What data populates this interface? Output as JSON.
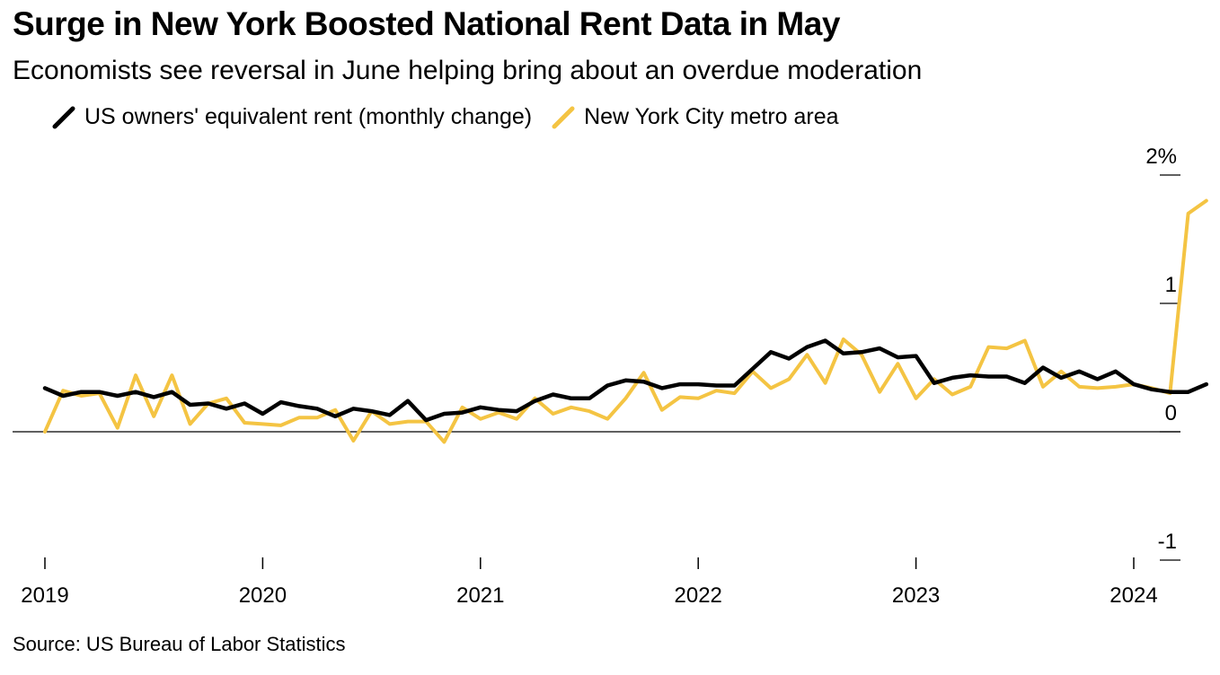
{
  "header": {
    "title": "Surge in New York Boosted National Rent Data in May",
    "subtitle": "Economists see reversal in June helping bring about an overdue moderation"
  },
  "footer": {
    "source": "Source: US Bureau of Labor Statistics"
  },
  "colors": {
    "us_series": "#000000",
    "nyc_series": "#f4c443",
    "axis": "#000000"
  },
  "chart_data": {
    "type": "line",
    "ylim": [
      -1,
      2
    ],
    "yticks": [
      {
        "value": 2,
        "label": "2%"
      },
      {
        "value": 1,
        "label": "1"
      },
      {
        "value": 0,
        "label": "0"
      },
      {
        "value": -1,
        "label": "-1"
      }
    ],
    "xticks": [
      {
        "date": "2019-01",
        "label": "2019"
      },
      {
        "date": "2020-01",
        "label": "2020"
      },
      {
        "date": "2021-01",
        "label": "2021"
      },
      {
        "date": "2022-01",
        "label": "2022"
      },
      {
        "date": "2023-01",
        "label": "2023"
      },
      {
        "date": "2024-01",
        "label": "2024"
      }
    ],
    "x": [
      "2019-01",
      "2019-02",
      "2019-03",
      "2019-04",
      "2019-05",
      "2019-06",
      "2019-07",
      "2019-08",
      "2019-09",
      "2019-10",
      "2019-11",
      "2019-12",
      "2020-01",
      "2020-02",
      "2020-03",
      "2020-04",
      "2020-05",
      "2020-06",
      "2020-07",
      "2020-08",
      "2020-09",
      "2020-10",
      "2020-11",
      "2020-12",
      "2021-01",
      "2021-02",
      "2021-03",
      "2021-04",
      "2021-05",
      "2021-06",
      "2021-07",
      "2021-08",
      "2021-09",
      "2021-10",
      "2021-11",
      "2021-12",
      "2022-01",
      "2022-02",
      "2022-03",
      "2022-04",
      "2022-05",
      "2022-06",
      "2022-07",
      "2022-08",
      "2022-09",
      "2022-10",
      "2022-11",
      "2022-12",
      "2023-01",
      "2023-02",
      "2023-03",
      "2023-04",
      "2023-05",
      "2023-06",
      "2023-07",
      "2023-08",
      "2023-09",
      "2023-10",
      "2023-11",
      "2023-12",
      "2024-01",
      "2024-02",
      "2024-03",
      "2024-04",
      "2024-05"
    ],
    "series": [
      {
        "name": "US owners' equivalent rent (monthly change)",
        "color": "#000000",
        "values": [
          0.34,
          0.28,
          0.31,
          0.31,
          0.28,
          0.31,
          0.27,
          0.31,
          0.21,
          0.22,
          0.18,
          0.22,
          0.14,
          0.23,
          0.2,
          0.18,
          0.12,
          0.18,
          0.16,
          0.13,
          0.24,
          0.09,
          0.14,
          0.15,
          0.19,
          0.17,
          0.16,
          0.24,
          0.29,
          0.26,
          0.26,
          0.36,
          0.4,
          0.39,
          0.34,
          0.37,
          0.37,
          0.36,
          0.36,
          0.49,
          0.62,
          0.57,
          0.66,
          0.71,
          0.61,
          0.62,
          0.65,
          0.58,
          0.59,
          0.38,
          0.42,
          0.44,
          0.43,
          0.43,
          0.38,
          0.5,
          0.42,
          0.47,
          0.41,
          0.47,
          0.37,
          0.33,
          0.31,
          0.31,
          0.37
        ]
      },
      {
        "name": "New York City metro area",
        "color": "#f4c443",
        "values": [
          0.0,
          0.32,
          0.28,
          0.3,
          0.03,
          0.44,
          0.12,
          0.44,
          0.06,
          0.22,
          0.26,
          0.07,
          0.06,
          0.05,
          0.11,
          0.11,
          0.17,
          -0.07,
          0.16,
          0.06,
          0.08,
          0.08,
          -0.08,
          0.19,
          0.1,
          0.15,
          0.1,
          0.26,
          0.14,
          0.19,
          0.16,
          0.1,
          0.26,
          0.46,
          0.17,
          0.27,
          0.26,
          0.32,
          0.3,
          0.47,
          0.34,
          0.41,
          0.6,
          0.38,
          0.72,
          0.6,
          0.31,
          0.53,
          0.26,
          0.41,
          0.29,
          0.35,
          0.66,
          0.65,
          0.71,
          0.35,
          0.47,
          0.35,
          0.34,
          0.35,
          0.37,
          0.34,
          0.3,
          1.7,
          1.8
        ]
      }
    ]
  }
}
